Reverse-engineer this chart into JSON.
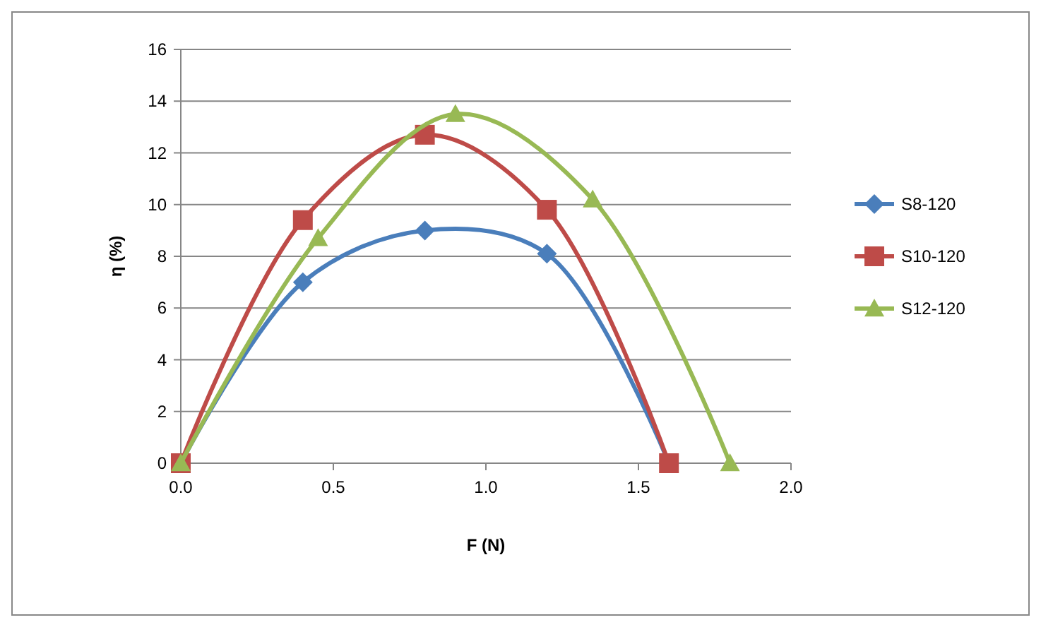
{
  "chart_data": {
    "type": "line",
    "xlabel": "F (N)",
    "ylabel": "η (%)",
    "xlim": [
      0,
      2
    ],
    "xticks": [
      {
        "value": 0,
        "label": "0.0"
      },
      {
        "value": 0.5,
        "label": "0.5"
      },
      {
        "value": 1,
        "label": "1.0"
      },
      {
        "value": 1.5,
        "label": "1.5"
      },
      {
        "value": 2,
        "label": "2.0"
      }
    ],
    "ylim": [
      0,
      16
    ],
    "yticks": [
      0,
      2,
      4,
      6,
      8,
      10,
      12,
      14,
      16
    ],
    "grid": "y",
    "legend": "right",
    "series": [
      {
        "name": "S8-120",
        "color": "#4a7ebb",
        "marker": "diamond",
        "x": [
          0,
          0.4,
          0.8,
          1.2,
          1.6
        ],
        "values": [
          0,
          7.0,
          9.0,
          8.1,
          0
        ]
      },
      {
        "name": "S10-120",
        "color": "#be4b48",
        "marker": "square",
        "x": [
          0,
          0.4,
          0.8,
          1.2,
          1.6
        ],
        "values": [
          0,
          9.4,
          12.7,
          9.8,
          0
        ]
      },
      {
        "name": "S12-120",
        "color": "#98b954",
        "marker": "triangle",
        "x": [
          0,
          0.45,
          0.9,
          1.35,
          1.8
        ],
        "values": [
          0,
          8.7,
          13.5,
          10.2,
          0
        ]
      }
    ]
  }
}
